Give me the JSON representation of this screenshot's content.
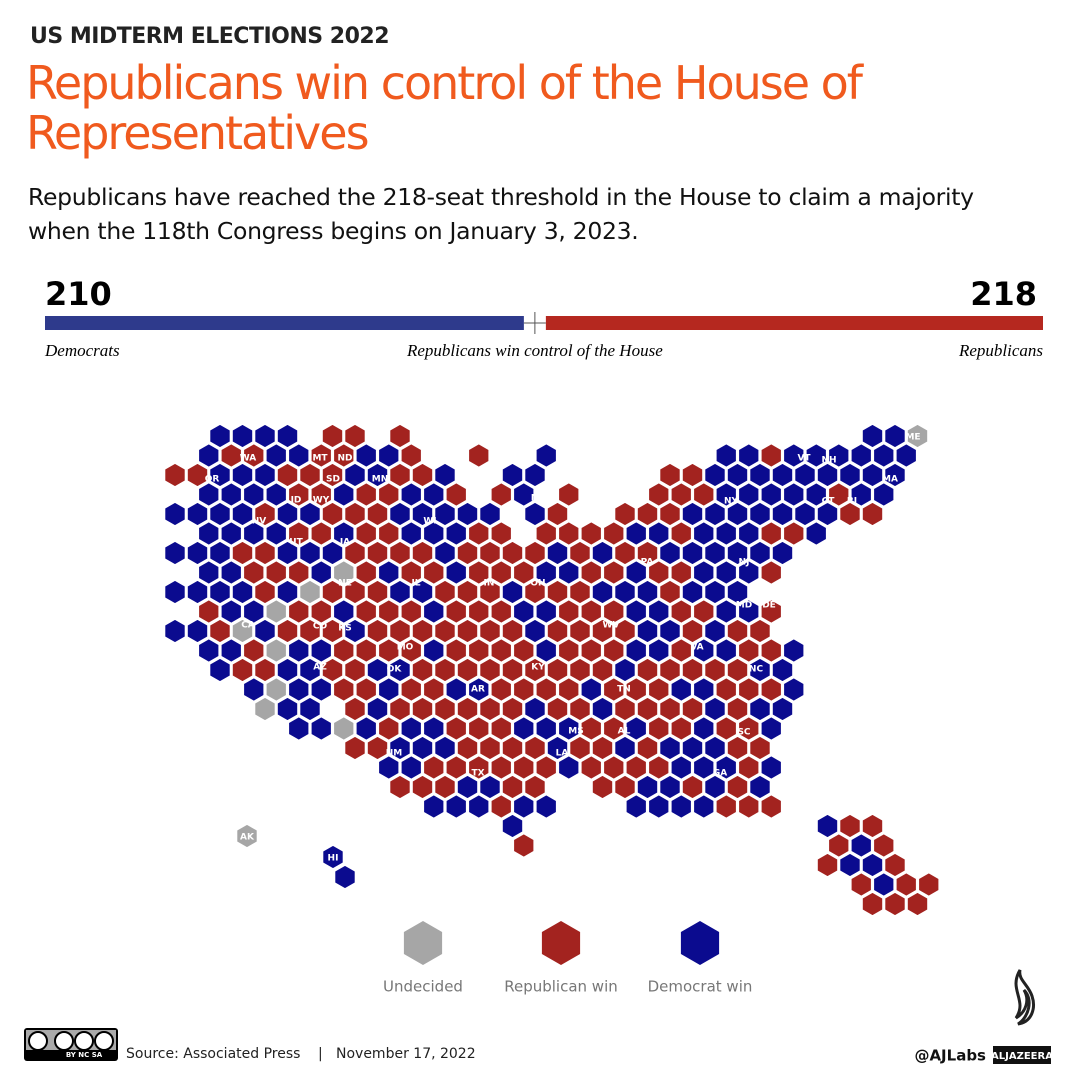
{
  "header": {
    "kicker": "US MIDTERM ELECTIONS 2022",
    "title_line1": "Republicans win control of the House of",
    "title_line2": "Representatives",
    "subtitle_line1": "Republicans have reached the 218-seat threshold in the House to claim a majority",
    "subtitle_line2": "when the 118th Congress begins on January 3, 2023."
  },
  "chart_data": {
    "type": "seat-bar",
    "series": [
      {
        "name": "Democrats",
        "color": "#2e3a8c",
        "values": [
          210
        ]
      },
      {
        "name": "Republicans",
        "color": "#b5281f",
        "values": [
          218
        ]
      }
    ],
    "threshold_label": "Republicans win control of the House"
  },
  "map": {
    "state_labels": [
      "WA",
      "OR",
      "MT",
      "ND",
      "SD",
      "MN",
      "ID",
      "WY",
      "MI",
      "VT",
      "NH",
      "MA",
      "ME",
      "NY",
      "CT",
      "RI",
      "NV",
      "WI",
      "UT",
      "IA",
      "NJ",
      "PA",
      "NE",
      "IL",
      "IN",
      "OH",
      "MD",
      "DE",
      "CA",
      "CO",
      "KS",
      "WV",
      "MO",
      "VA",
      "KY",
      "NC",
      "AZ",
      "OK",
      "AR",
      "TN",
      "MS",
      "AL",
      "SC",
      "NM",
      "LA",
      "TX",
      "GA",
      "FL",
      "AK",
      "HI"
    ],
    "legend": [
      {
        "name": "Undecided",
        "color": "#a6a6a6"
      },
      {
        "name": "Republican win",
        "color": "#a3231f"
      },
      {
        "name": "Democrat win",
        "color": "#0b0b8f"
      }
    ]
  },
  "footer": {
    "license": "BY NC SA",
    "source": "Source: Associated Press",
    "separator": "|",
    "date": "November 17, 2022",
    "handle": "@AJLabs",
    "logo": "ALJAZEERA"
  }
}
